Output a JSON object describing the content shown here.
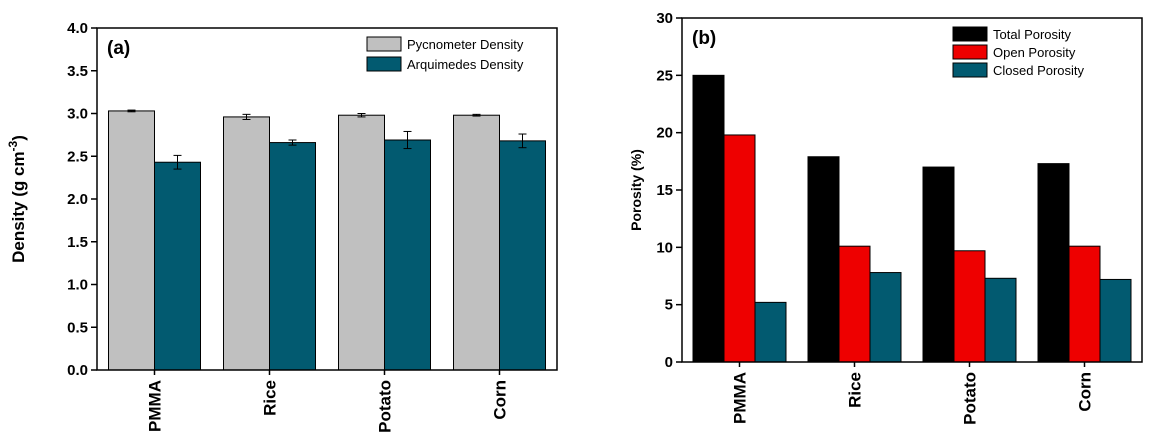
{
  "colors": {
    "pycnometer": "#c0c0c0",
    "arquimedes": "#025a70",
    "total": "#000000",
    "open": "#ee0000",
    "closed": "#025a70"
  },
  "chart_data": [
    {
      "type": "bar",
      "panel_label": "(a)",
      "categories": [
        "PMMA",
        "Rice",
        "Potato",
        "Corn"
      ],
      "ylabel": "Density (g cm",
      "ylabel_superscript": "-3",
      "ylabel_close": ")",
      "ylim": [
        0,
        4.0
      ],
      "yticks": [
        "0.0",
        "0.5",
        "1.0",
        "1.5",
        "2.0",
        "2.5",
        "3.0",
        "3.5",
        "4.0"
      ],
      "legend_position": "top-right",
      "series": [
        {
          "name": "Pycnometer Density",
          "values": [
            3.03,
            2.96,
            2.98,
            2.98
          ],
          "errors": [
            0.01,
            0.03,
            0.02,
            0.01
          ]
        },
        {
          "name": "Arquimedes Density",
          "values": [
            2.43,
            2.66,
            2.69,
            2.68
          ],
          "errors": [
            0.08,
            0.03,
            0.1,
            0.08
          ]
        }
      ]
    },
    {
      "type": "bar",
      "panel_label": "(b)",
      "categories": [
        "PMMA",
        "Rice",
        "Potato",
        "Corn"
      ],
      "ylabel": "Porosity (%)",
      "ylim": [
        0,
        30
      ],
      "yticks": [
        "0",
        "5",
        "10",
        "15",
        "20",
        "25",
        "30"
      ],
      "legend_position": "top-right",
      "series": [
        {
          "name": "Total Porosity",
          "values": [
            25.0,
            17.9,
            17.0,
            17.3
          ]
        },
        {
          "name": "Open Porosity",
          "values": [
            19.8,
            10.1,
            9.7,
            10.1
          ]
        },
        {
          "name": "Closed Porosity",
          "values": [
            5.2,
            7.8,
            7.3,
            7.2
          ]
        }
      ]
    }
  ]
}
